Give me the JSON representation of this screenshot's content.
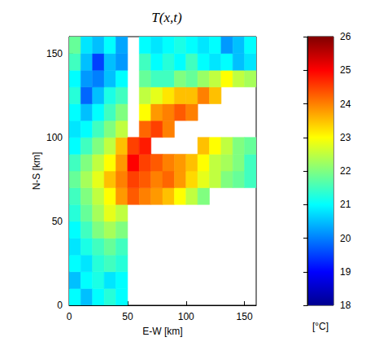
{
  "chart_data": {
    "type": "heatmap",
    "title": "T(x,t)",
    "xlabel": "E-W [km]",
    "ylabel": "N-S [km]",
    "x": [
      5,
      15,
      25,
      35,
      45,
      55,
      65,
      75,
      85,
      95,
      105,
      115,
      125,
      135,
      145,
      155
    ],
    "y": [
      5,
      15,
      25,
      35,
      45,
      55,
      65,
      75,
      85,
      95,
      105,
      115,
      125,
      135,
      145,
      155
    ],
    "values": [
      [
        21.0,
        20.5,
        21.0,
        21.3,
        21.0,
        null,
        null,
        null,
        null,
        null,
        null,
        null,
        null,
        null,
        null,
        null
      ],
      [
        20.5,
        21.0,
        21.2,
        20.8,
        21.0,
        null,
        null,
        null,
        null,
        null,
        null,
        null,
        null,
        null,
        null,
        null
      ],
      [
        21.0,
        20.8,
        21.3,
        21.5,
        21.3,
        null,
        null,
        null,
        null,
        null,
        null,
        null,
        null,
        null,
        null,
        null
      ],
      [
        20.8,
        21.2,
        21.5,
        21.8,
        21.5,
        null,
        null,
        null,
        null,
        null,
        null,
        null,
        null,
        null,
        null,
        null
      ],
      [
        21.0,
        21.5,
        22.0,
        22.3,
        22.0,
        null,
        null,
        null,
        null,
        null,
        null,
        null,
        null,
        null,
        null,
        null
      ],
      [
        21.3,
        21.8,
        22.3,
        22.8,
        22.5,
        null,
        null,
        null,
        null,
        null,
        null,
        null,
        null,
        null,
        null,
        null
      ],
      [
        21.5,
        22.0,
        22.5,
        23.0,
        23.8,
        24.3,
        24.0,
        23.8,
        23.5,
        23.0,
        22.5,
        22.0,
        null,
        null,
        null,
        null
      ],
      [
        21.8,
        22.3,
        22.8,
        23.5,
        24.0,
        24.5,
        24.3,
        24.0,
        24.2,
        23.8,
        23.3,
        22.8,
        22.5,
        22.0,
        21.8,
        21.5
      ],
      [
        21.5,
        22.0,
        22.5,
        23.0,
        23.8,
        25.0,
        24.5,
        24.3,
        24.0,
        23.8,
        23.5,
        23.0,
        22.5,
        22.3,
        22.0,
        21.5
      ],
      [
        21.0,
        21.5,
        22.0,
        22.5,
        23.5,
        24.5,
        24.8,
        null,
        null,
        null,
        null,
        23.5,
        23.0,
        22.5,
        22.0,
        21.8
      ],
      [
        20.8,
        21.0,
        21.5,
        22.0,
        22.5,
        null,
        24.2,
        24.5,
        24.0,
        null,
        null,
        null,
        null,
        null,
        null,
        null
      ],
      [
        21.0,
        20.5,
        21.0,
        21.5,
        22.0,
        null,
        23.0,
        23.8,
        24.0,
        24.3,
        24.0,
        null,
        null,
        null,
        null,
        null
      ],
      [
        21.3,
        19.8,
        20.5,
        21.2,
        21.5,
        null,
        22.5,
        22.8,
        23.2,
        23.5,
        23.5,
        24.0,
        23.5,
        null,
        null,
        null
      ],
      [
        21.0,
        20.2,
        20.0,
        20.5,
        21.0,
        null,
        21.8,
        21.5,
        21.5,
        22.0,
        21.8,
        22.2,
        22.5,
        23.0,
        22.5,
        22.3
      ],
      [
        21.5,
        20.5,
        19.5,
        20.5,
        20.2,
        null,
        21.5,
        21.0,
        21.3,
        21.0,
        21.5,
        21.0,
        20.8,
        21.0,
        20.5,
        20.8
      ],
      [
        21.8,
        20.8,
        20.5,
        21.0,
        20.3,
        null,
        21.0,
        20.8,
        21.0,
        21.2,
        21.0,
        20.8,
        21.0,
        20.2,
        20.5,
        21.0
      ]
    ],
    "xlim": [
      0,
      160
    ],
    "ylim": [
      0,
      160
    ],
    "xticks": [
      0,
      50,
      100,
      150
    ],
    "yticks": [
      0,
      50,
      100,
      150
    ],
    "colorbar": {
      "label": "[°C]",
      "range": [
        18,
        26
      ],
      "ticks": [
        18,
        19,
        20,
        21,
        22,
        23,
        24,
        25,
        26
      ]
    }
  }
}
